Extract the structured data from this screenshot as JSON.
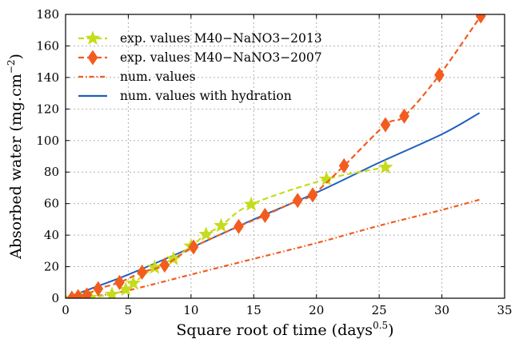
{
  "chart_data": {
    "type": "line",
    "xlabel_main": "Square root of time (days",
    "xlabel_sup": "0.5",
    "xlabel_close": ")",
    "ylabel_main": "Absorbed water (mg.cm",
    "ylabel_sup": "−2",
    "ylabel_close": ")",
    "xlim": [
      0,
      35
    ],
    "ylim": [
      0,
      180
    ],
    "xticks": [
      0,
      5,
      10,
      15,
      20,
      25,
      30,
      35
    ],
    "yticks": [
      0,
      20,
      40,
      60,
      80,
      100,
      120,
      140,
      160,
      180
    ],
    "grid": true,
    "legend_position": "top-left",
    "series": [
      {
        "name": "exp. values M40−NaNO3−2013",
        "color": "#c5dc1c",
        "marker": "star",
        "line": "dashed",
        "x": [
          0.5,
          1.2,
          2.0,
          3.7,
          4.8,
          5.4,
          7.1,
          8.6,
          10.0,
          11.2,
          12.4,
          14.8,
          20.8,
          25.5
        ],
        "y": [
          0,
          0,
          0.5,
          2.5,
          5.5,
          9.5,
          19.5,
          25,
          33,
          40.5,
          46,
          59.5,
          75.5,
          83
        ]
      },
      {
        "name": "exp. values M40−NaNO3−2007",
        "color": "#f25c1f",
        "marker": "diamond",
        "line": "dashed",
        "x": [
          0.5,
          1.0,
          1.7,
          2.6,
          4.3,
          6.1,
          7.9,
          10.2,
          13.8,
          15.9,
          18.5,
          19.7,
          22.2,
          25.5,
          27.0,
          29.8,
          33.1
        ],
        "y": [
          0,
          1,
          2,
          6,
          10,
          16.5,
          21,
          32.5,
          45.5,
          52.5,
          62,
          65.5,
          84,
          110,
          115.5,
          141.5,
          179
        ]
      },
      {
        "name": "num. values",
        "color": "#f25c1f",
        "marker": "none",
        "line": "dashdot",
        "x": [
          0,
          2,
          5,
          10,
          15,
          20,
          25,
          30,
          33
        ],
        "y": [
          0,
          1,
          5,
          15,
          25,
          35,
          46,
          56,
          62.5
        ]
      },
      {
        "name": "num. values with hydration",
        "color": "#1f5fbf",
        "marker": "none",
        "line": "solid",
        "x": [
          0,
          2,
          5,
          10,
          15,
          20,
          25,
          30,
          33
        ],
        "y": [
          0,
          6,
          15,
          32,
          50,
          67,
          86,
          104,
          117.5
        ]
      }
    ]
  }
}
